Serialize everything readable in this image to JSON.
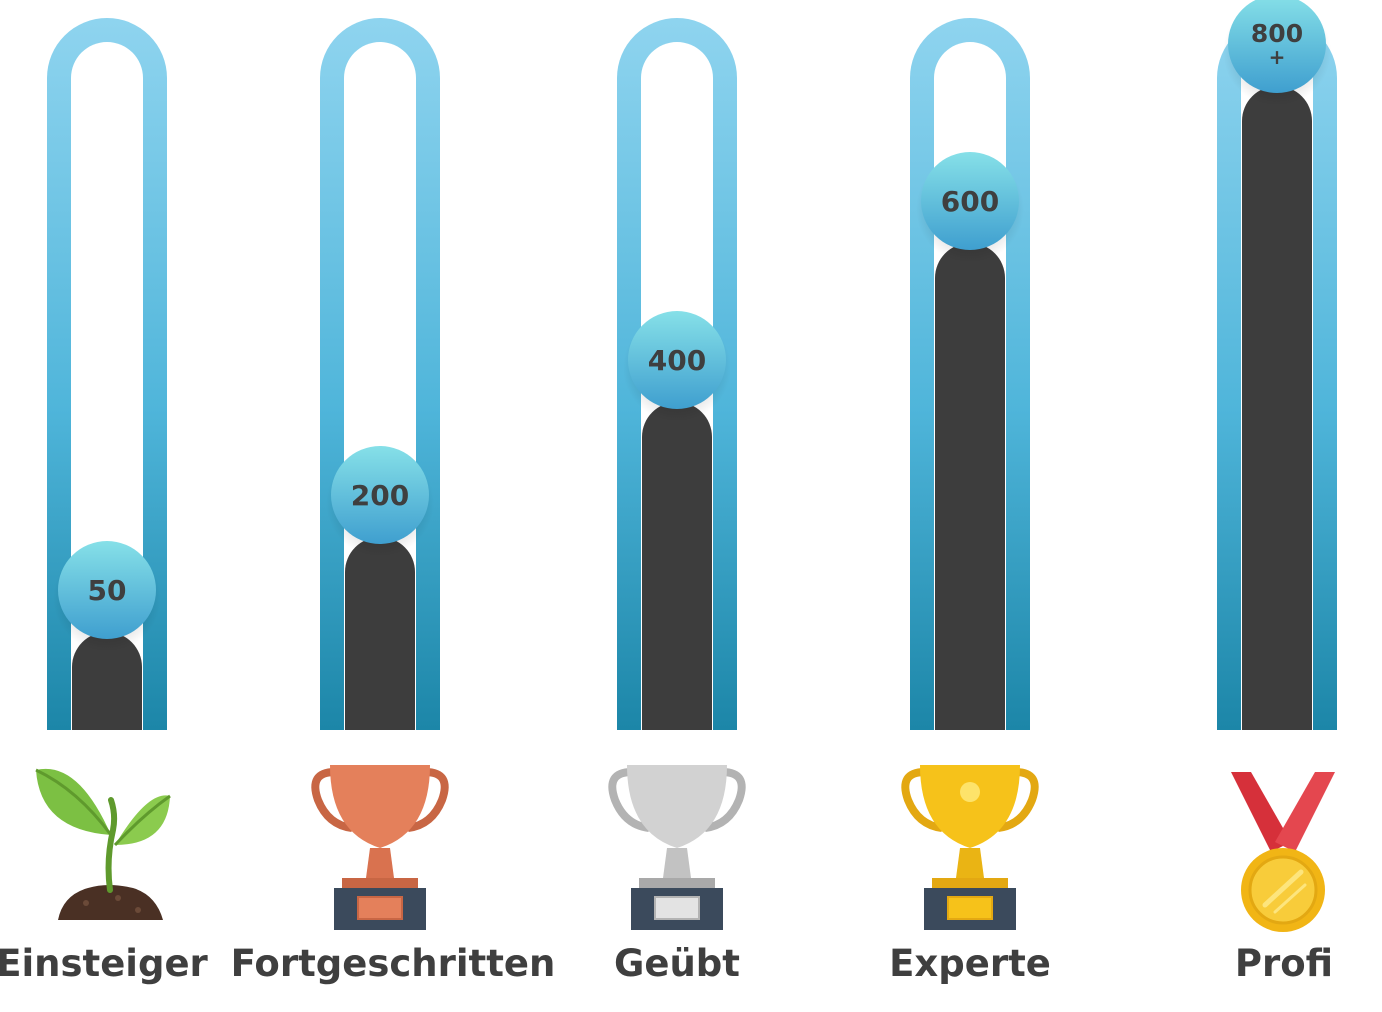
{
  "chart_data": {
    "type": "bar",
    "categories": [
      "Einsteiger",
      "Fortgeschritten",
      "Geübt",
      "Experte",
      "Profi"
    ],
    "values": [
      50,
      200,
      400,
      600,
      800
    ],
    "data_labels": [
      "50",
      "200",
      "400",
      "600",
      "800 +"
    ],
    "icons": [
      "sprout-icon",
      "bronze-trophy-icon",
      "silver-trophy-icon",
      "gold-trophy-icon",
      "gold-medal-icon"
    ],
    "title": "",
    "xlabel": "",
    "ylabel": "",
    "ylim": [
      0,
      850
    ],
    "grid": false,
    "legend": "none"
  },
  "colors": {
    "tube_top": "#8fd4ef",
    "tube_bottom": "#1c86a8",
    "fill": "#3d3d3d",
    "bubble_top": "#86e0e8",
    "bubble_bottom": "#3fa0cf",
    "label_text": "#3f3f3f",
    "dash_start": "#56cfe1",
    "dash_end": "#1f4fa3",
    "bronze": "#e4805b",
    "silver": "#cfcfcf",
    "gold": "#f6c21a",
    "ribbon": "#d6303a",
    "leaf": "#7cc043",
    "soil": "#4a3024",
    "base": "#3b4a5c"
  }
}
